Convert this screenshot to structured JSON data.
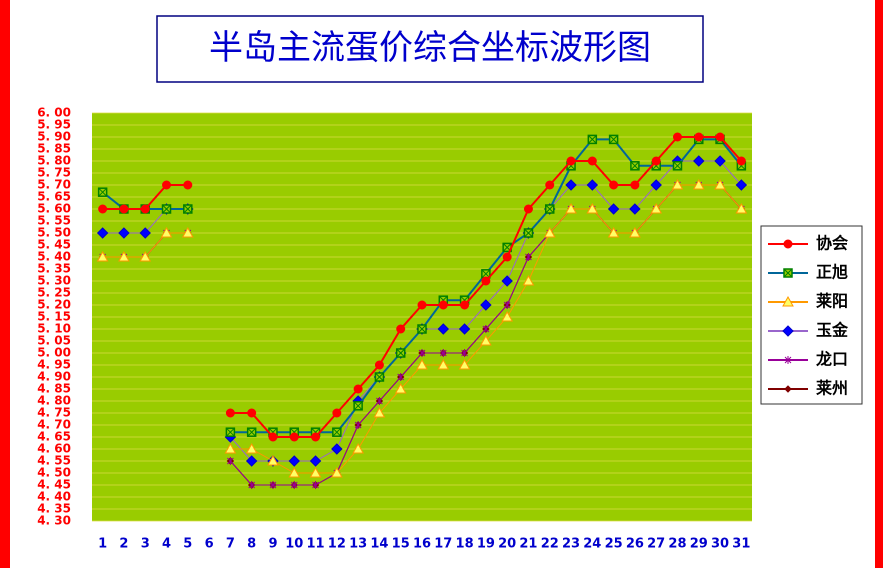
{
  "chart_data": {
    "type": "line",
    "title": "半岛主流蛋价综合坐标波形图",
    "categories": [
      "1",
      "2",
      "3",
      "4",
      "5",
      "6",
      "7",
      "8",
      "9",
      "10",
      "11",
      "12",
      "13",
      "14",
      "15",
      "16",
      "17",
      "18",
      "19",
      "20",
      "21",
      "22",
      "23",
      "24",
      "25",
      "26",
      "27",
      "28",
      "29",
      "30",
      "31"
    ],
    "series": [
      {
        "name": "协会",
        "color": "#ff0000",
        "marker": "circle",
        "values": [
          5.6,
          5.6,
          5.6,
          5.7,
          5.7,
          null,
          4.75,
          4.75,
          4.65,
          4.65,
          4.65,
          4.75,
          4.85,
          4.95,
          5.1,
          5.2,
          5.2,
          5.2,
          5.3,
          5.4,
          5.6,
          5.7,
          5.8,
          5.8,
          5.7,
          5.7,
          5.8,
          5.9,
          5.9,
          5.9,
          5.8
        ]
      },
      {
        "name": "正旭",
        "color": "#006699",
        "marker": "square-x",
        "values": [
          5.67,
          5.6,
          5.6,
          5.6,
          5.6,
          null,
          4.67,
          4.67,
          4.67,
          4.67,
          4.67,
          4.67,
          4.78,
          4.9,
          5.0,
          5.1,
          5.22,
          5.22,
          5.33,
          5.44,
          5.5,
          5.6,
          5.78,
          5.89,
          5.89,
          5.78,
          5.78,
          5.78,
          5.89,
          5.89,
          5.78
        ]
      },
      {
        "name": "莱阳",
        "color": "#ff9900",
        "marker": "triangle",
        "values": [
          5.4,
          5.4,
          5.4,
          5.5,
          5.5,
          null,
          4.6,
          4.6,
          4.55,
          4.5,
          4.5,
          4.5,
          4.6,
          4.75,
          4.85,
          4.95,
          4.95,
          4.95,
          5.05,
          5.15,
          5.3,
          5.5,
          5.6,
          5.6,
          5.5,
          5.5,
          5.6,
          5.7,
          5.7,
          5.7,
          5.6
        ]
      },
      {
        "name": "玉金",
        "color": "#9966cc",
        "marker": "diamond",
        "values": [
          5.5,
          5.5,
          5.5,
          5.6,
          5.6,
          null,
          4.65,
          4.55,
          4.55,
          4.55,
          4.55,
          4.6,
          4.8,
          4.9,
          5.0,
          5.1,
          5.1,
          5.1,
          5.2,
          5.3,
          5.5,
          5.6,
          5.7,
          5.7,
          5.6,
          5.6,
          5.7,
          5.8,
          5.8,
          5.8,
          5.7
        ]
      },
      {
        "name": "龙口",
        "color": "#990099",
        "marker": "star",
        "values": [
          5.4,
          5.4,
          5.4,
          5.5,
          5.5,
          null,
          4.55,
          4.45,
          4.45,
          4.45,
          4.45,
          4.5,
          4.7,
          4.8,
          4.9,
          5.0,
          5.0,
          5.0,
          5.1,
          5.2,
          5.4,
          5.5,
          5.6,
          5.6,
          5.5,
          5.5,
          5.6,
          5.7,
          5.7,
          5.7,
          5.6
        ]
      },
      {
        "name": "莱州",
        "color": "#800000",
        "marker": "small-diamond",
        "values": [
          5.4,
          5.4,
          5.4,
          5.5,
          5.5,
          null,
          4.55,
          4.45,
          4.45,
          4.45,
          4.45,
          4.5,
          4.7,
          4.8,
          4.9,
          5.0,
          5.0,
          5.0,
          5.1,
          5.2,
          5.4,
          5.5,
          5.6,
          5.6,
          5.5,
          5.5,
          5.6,
          5.7,
          5.7,
          5.7,
          5.6
        ]
      }
    ],
    "ylim": [
      4.3,
      6.0
    ],
    "yticks": [
      {
        "value": 6.0,
        "label": "6. 00"
      },
      {
        "value": 5.95,
        "label": "5. 95"
      },
      {
        "value": 5.9,
        "label": "5. 90"
      },
      {
        "value": 5.85,
        "label": "5. 85"
      },
      {
        "value": 5.8,
        "label": "5. 80"
      },
      {
        "value": 5.75,
        "label": "5. 75"
      },
      {
        "value": 5.7,
        "label": "5. 70"
      },
      {
        "value": 5.65,
        "label": "5. 65"
      },
      {
        "value": 5.6,
        "label": "5. 60"
      },
      {
        "value": 5.55,
        "label": "5. 55"
      },
      {
        "value": 5.5,
        "label": "5. 50"
      },
      {
        "value": 5.45,
        "label": "5. 45"
      },
      {
        "value": 5.4,
        "label": "5. 40"
      },
      {
        "value": 5.35,
        "label": "5. 35"
      },
      {
        "value": 5.3,
        "label": "5. 30"
      },
      {
        "value": 5.25,
        "label": "5. 25"
      },
      {
        "value": 5.2,
        "label": "5. 20"
      },
      {
        "value": 5.15,
        "label": "5. 15"
      },
      {
        "value": 5.1,
        "label": "5. 10"
      },
      {
        "value": 5.05,
        "label": "5. 05"
      },
      {
        "value": 5.0,
        "label": "5. 00"
      },
      {
        "value": 4.95,
        "label": "4. 95"
      },
      {
        "value": 4.9,
        "label": "4. 90"
      },
      {
        "value": 4.85,
        "label": "4. 85"
      },
      {
        "value": 4.8,
        "label": "4. 80"
      },
      {
        "value": 4.75,
        "label": "4. 75"
      },
      {
        "value": 4.7,
        "label": "4. 70"
      },
      {
        "value": 4.65,
        "label": "4. 65"
      },
      {
        "value": 4.6,
        "label": "4. 60"
      },
      {
        "value": 4.55,
        "label": "4. 55"
      },
      {
        "value": 4.5,
        "label": "4. 50"
      },
      {
        "value": 4.45,
        "label": "4. 45"
      },
      {
        "value": 4.4,
        "label": "4. 40"
      },
      {
        "value": 4.35,
        "label": "4. 35"
      },
      {
        "value": 4.3,
        "label": "4. 30"
      }
    ],
    "grid": true,
    "legend": "right"
  }
}
